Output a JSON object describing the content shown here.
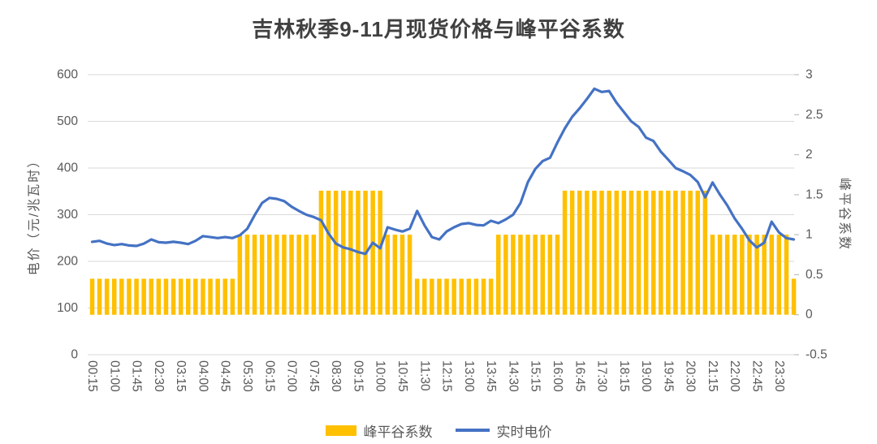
{
  "title": "吉林秋季9-11月现货价格与峰平谷系数",
  "colors": {
    "bar": "#FFC000",
    "line": "#4472C4",
    "grid": "#D9D9D9",
    "tick_mark": "#BFBFBF",
    "tick_text": "#595959",
    "title_text": "#404040",
    "background": "#FFFFFF"
  },
  "chart_data": {
    "type": "bar+line",
    "x": [
      "00:15",
      "00:30",
      "00:45",
      "01:00",
      "01:15",
      "01:30",
      "01:45",
      "02:00",
      "02:15",
      "02:30",
      "02:45",
      "03:00",
      "03:15",
      "03:30",
      "03:45",
      "04:00",
      "04:15",
      "04:30",
      "04:45",
      "05:00",
      "05:15",
      "05:30",
      "05:45",
      "06:00",
      "06:15",
      "06:30",
      "06:45",
      "07:00",
      "07:15",
      "07:30",
      "07:45",
      "08:00",
      "08:15",
      "08:30",
      "08:45",
      "09:00",
      "09:15",
      "09:30",
      "09:45",
      "10:00",
      "10:15",
      "10:30",
      "10:45",
      "11:00",
      "11:15",
      "11:30",
      "11:45",
      "12:00",
      "12:15",
      "12:30",
      "12:45",
      "13:00",
      "13:15",
      "13:30",
      "13:45",
      "14:00",
      "14:15",
      "14:30",
      "14:45",
      "15:00",
      "15:15",
      "15:30",
      "15:45",
      "16:00",
      "16:15",
      "16:30",
      "16:45",
      "17:00",
      "17:15",
      "17:30",
      "17:45",
      "18:00",
      "18:15",
      "18:30",
      "18:45",
      "19:00",
      "19:15",
      "19:30",
      "19:45",
      "20:00",
      "20:15",
      "20:30",
      "20:45",
      "21:00",
      "21:15",
      "21:30",
      "21:45",
      "22:00",
      "22:15",
      "22:30",
      "22:45",
      "23:00",
      "23:15",
      "23:30",
      "23:45",
      "24:00"
    ],
    "x_label_every": 3,
    "series": [
      {
        "name": "峰平谷系数",
        "type": "bar",
        "axis": "right",
        "color": "#FFC000",
        "values": [
          0.45,
          0.45,
          0.45,
          0.45,
          0.45,
          0.45,
          0.45,
          0.45,
          0.45,
          0.45,
          0.45,
          0.45,
          0.45,
          0.45,
          0.45,
          0.45,
          0.45,
          0.45,
          0.45,
          0.45,
          1,
          1,
          1,
          1,
          1,
          1,
          1,
          1,
          1,
          1,
          1,
          1.55,
          1.55,
          1.55,
          1.55,
          1.55,
          1.55,
          1.55,
          1.55,
          1.55,
          1,
          1,
          1,
          1,
          0.45,
          0.45,
          0.45,
          0.45,
          0.45,
          0.45,
          0.45,
          0.45,
          0.45,
          0.45,
          0.45,
          1,
          1,
          1,
          1,
          1,
          1,
          1,
          1,
          1,
          1.55,
          1.55,
          1.55,
          1.55,
          1.55,
          1.55,
          1.55,
          1.55,
          1.55,
          1.55,
          1.55,
          1.55,
          1.55,
          1.55,
          1.55,
          1.55,
          1.55,
          1.55,
          1.55,
          1.55,
          1,
          1,
          1,
          1,
          1,
          1,
          1,
          1,
          1,
          1,
          1,
          0.45
        ]
      },
      {
        "name": "实时电价",
        "type": "line",
        "axis": "left",
        "color": "#4472C4",
        "values": [
          242,
          244,
          238,
          235,
          237,
          234,
          233,
          238,
          247,
          241,
          240,
          242,
          240,
          237,
          244,
          254,
          252,
          250,
          252,
          250,
          256,
          270,
          299,
          325,
          336,
          334,
          329,
          317,
          308,
          300,
          295,
          288,
          260,
          238,
          230,
          226,
          220,
          216,
          240,
          228,
          273,
          268,
          264,
          270,
          308,
          277,
          252,
          247,
          264,
          273,
          280,
          282,
          278,
          277,
          287,
          282,
          290,
          300,
          325,
          370,
          398,
          415,
          422,
          455,
          485,
          510,
          528,
          548,
          570,
          563,
          565,
          540,
          520,
          500,
          488,
          465,
          458,
          435,
          418,
          400,
          393,
          385,
          370,
          337,
          369,
          343,
          320,
          292,
          270,
          245,
          230,
          240,
          285,
          262,
          250,
          247
        ]
      }
    ],
    "left_axis": {
      "label": "电价（元/兆瓦时）",
      "min": 0,
      "max": 600,
      "ticks": [
        0,
        100,
        200,
        300,
        400,
        500,
        600
      ]
    },
    "right_axis": {
      "label": "峰平谷系数",
      "min": -0.5,
      "max": 3,
      "ticks": [
        -0.5,
        0,
        0.5,
        1,
        1.5,
        2,
        2.5,
        3
      ]
    },
    "grid": true,
    "legend_position": "bottom"
  }
}
